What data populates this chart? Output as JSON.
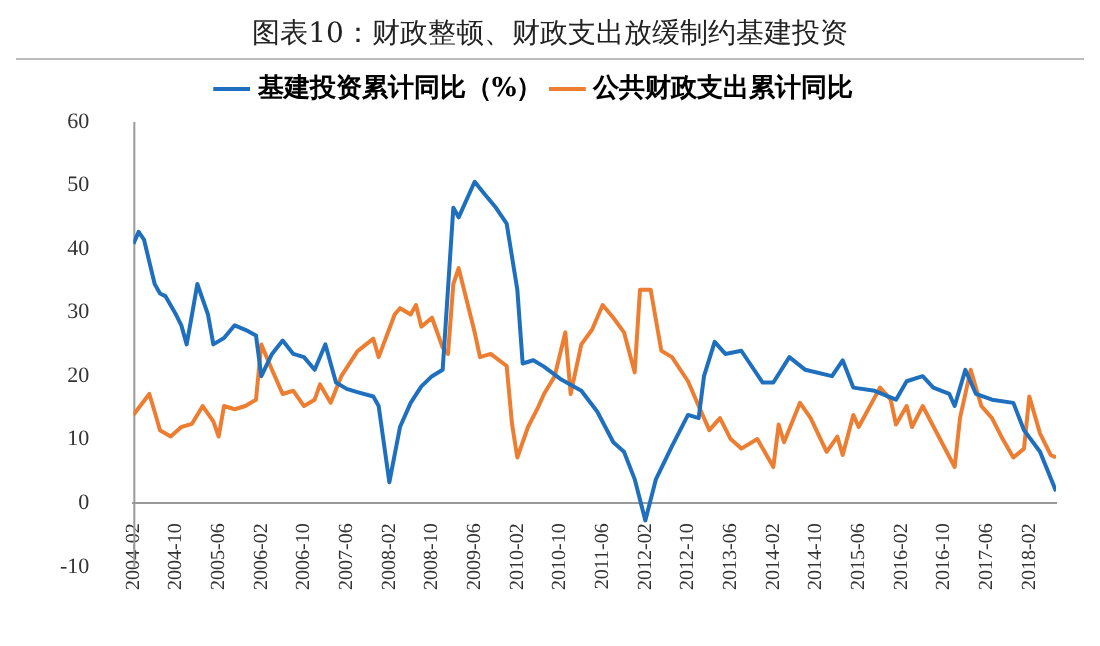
{
  "chart_data": {
    "type": "line",
    "title": "图表10：财政整顿、财政支出放缓制约基建投资",
    "xlim": [
      "2004-02",
      "2018-07"
    ],
    "xticks": [
      "2004-02",
      "2004-10",
      "2005-06",
      "2006-02",
      "2006-10",
      "2007-06",
      "2008-02",
      "2008-10",
      "2009-06",
      "2010-02",
      "2010-10",
      "2011-06",
      "2012-02",
      "2012-10",
      "2013-06",
      "2014-02",
      "2014-10",
      "2015-06",
      "2016-02",
      "2016-10",
      "2017-06",
      "2018-02"
    ],
    "ylim": [
      -10,
      60
    ],
    "yticks": [
      -10,
      0,
      10,
      20,
      30,
      40,
      50,
      60
    ],
    "grid": false,
    "legend": "top",
    "marker": "none",
    "line_style": "solid",
    "series": [
      {
        "name": "基建投资累计同比（%）",
        "color": "#1f6fbf",
        "x": [
          "2004-02",
          "2004-03",
          "2004-04",
          "2004-06",
          "2004-07",
          "2004-08",
          "2004-10",
          "2004-11",
          "2004-12",
          "2005-01",
          "2005-02",
          "2005-04",
          "2005-05",
          "2005-07",
          "2005-09",
          "2005-11",
          "2006-01",
          "2006-02",
          "2006-04",
          "2006-06",
          "2006-08",
          "2006-10",
          "2006-12",
          "2007-02",
          "2007-04",
          "2007-06",
          "2007-08",
          "2007-11",
          "2007-12",
          "2008-02",
          "2008-04",
          "2008-06",
          "2008-08",
          "2008-10",
          "2008-12",
          "2009-02",
          "2009-03",
          "2009-06",
          "2009-08",
          "2009-10",
          "2009-12",
          "2010-02",
          "2010-03",
          "2010-05",
          "2010-07",
          "2010-10",
          "2011-02",
          "2011-05",
          "2011-08",
          "2011-10",
          "2011-12",
          "2012-02",
          "2012-04",
          "2012-07",
          "2012-10",
          "2012-12",
          "2013-01",
          "2013-03",
          "2013-05",
          "2013-08",
          "2013-12",
          "2014-02",
          "2014-05",
          "2014-08",
          "2015-01",
          "2015-03",
          "2015-05",
          "2015-09",
          "2016-01",
          "2016-03",
          "2016-06",
          "2016-08",
          "2016-11",
          "2016-12",
          "2017-02",
          "2017-04",
          "2017-07",
          "2017-11",
          "2018-01",
          "2018-04",
          "2018-07"
        ],
        "values": [
          40.8,
          42.7,
          41.5,
          34.5,
          33,
          32.6,
          29.7,
          28,
          25,
          29.7,
          34.5,
          29.7,
          25,
          26,
          28,
          27.3,
          26.4,
          20,
          23.5,
          25.6,
          23.5,
          23,
          21,
          25,
          19,
          18,
          17.5,
          16.8,
          15.3,
          3.3,
          12,
          15.8,
          18.4,
          20,
          21,
          46.5,
          45,
          50.6,
          48.5,
          46.5,
          44,
          33.6,
          22,
          22.5,
          21.5,
          19.6,
          17.7,
          14.4,
          9.6,
          8.1,
          3.8,
          -2.7,
          3.8,
          9,
          13.9,
          13.4,
          20,
          25.4,
          23.5,
          24,
          19,
          19,
          23,
          21,
          20,
          22.5,
          18.2,
          17.7,
          16.3,
          19.2,
          20,
          18.2,
          17.2,
          15.3,
          21,
          17.2,
          16.3,
          15.8,
          11.5,
          8.1,
          1.9
        ]
      },
      {
        "name": "公共财政支出累计同比",
        "color": "#ed7d31",
        "x": [
          "2004-02",
          "2004-05",
          "2004-06",
          "2004-07",
          "2004-09",
          "2004-11",
          "2005-01",
          "2005-03",
          "2005-05",
          "2005-06",
          "2005-07",
          "2005-09",
          "2005-11",
          "2006-01",
          "2006-02",
          "2006-04",
          "2006-06",
          "2006-08",
          "2006-10",
          "2006-12",
          "2007-01",
          "2007-03",
          "2007-05",
          "2007-08",
          "2007-11",
          "2007-12",
          "2008-03",
          "2008-04",
          "2008-06",
          "2008-07",
          "2008-08",
          "2008-10",
          "2008-12",
          "2009-01",
          "2009-02",
          "2009-03",
          "2009-06",
          "2009-07",
          "2009-09",
          "2009-12",
          "2010-01",
          "2010-02",
          "2010-04",
          "2010-06",
          "2010-07",
          "2010-09",
          "2010-11",
          "2010-12",
          "2011-02",
          "2011-04",
          "2011-06",
          "2011-08",
          "2011-10",
          "2011-12",
          "2012-01",
          "2012-03",
          "2012-05",
          "2012-07",
          "2012-10",
          "2012-12",
          "2013-02",
          "2013-04",
          "2013-06",
          "2013-08",
          "2013-11",
          "2014-02",
          "2014-03",
          "2014-04",
          "2014-07",
          "2014-09",
          "2014-12",
          "2015-02",
          "2015-03",
          "2015-05",
          "2015-06",
          "2015-10",
          "2015-12",
          "2016-01",
          "2016-03",
          "2016-04",
          "2016-06",
          "2016-09",
          "2016-12",
          "2017-01",
          "2017-03",
          "2017-05",
          "2017-07",
          "2017-09",
          "2017-11",
          "2018-01",
          "2018-02",
          "2018-04",
          "2018-06",
          "2018-07"
        ],
        "values": [
          13.9,
          17.2,
          14.4,
          11.5,
          10.5,
          12,
          12.5,
          15.3,
          12.9,
          10.5,
          15.3,
          14.8,
          15.3,
          16.3,
          25,
          21,
          17.2,
          17.7,
          15.3,
          16.3,
          18.7,
          15.8,
          20,
          23.9,
          25.9,
          23,
          29.7,
          30.7,
          29.7,
          31.2,
          27.8,
          29.2,
          24.5,
          23.5,
          34.5,
          37,
          26.9,
          23,
          23.5,
          21.6,
          12.5,
          7.2,
          12,
          15.3,
          17.2,
          20,
          26.9,
          17.2,
          25,
          27.3,
          31.2,
          29.2,
          26.9,
          20.6,
          33.6,
          33.6,
          24,
          23,
          19.2,
          15.3,
          11.5,
          13.4,
          10.1,
          8.6,
          10.1,
          5.7,
          12.4,
          9.6,
          15.8,
          13.4,
          8.1,
          10.5,
          7.6,
          13.9,
          12,
          18.2,
          16.3,
          12.4,
          15.3,
          12,
          15.3,
          10.5,
          5.7,
          13.4,
          21,
          15.3,
          13.4,
          10.1,
          7.2,
          8.6,
          16.8,
          11,
          7.6,
          7.2
        ]
      }
    ]
  }
}
